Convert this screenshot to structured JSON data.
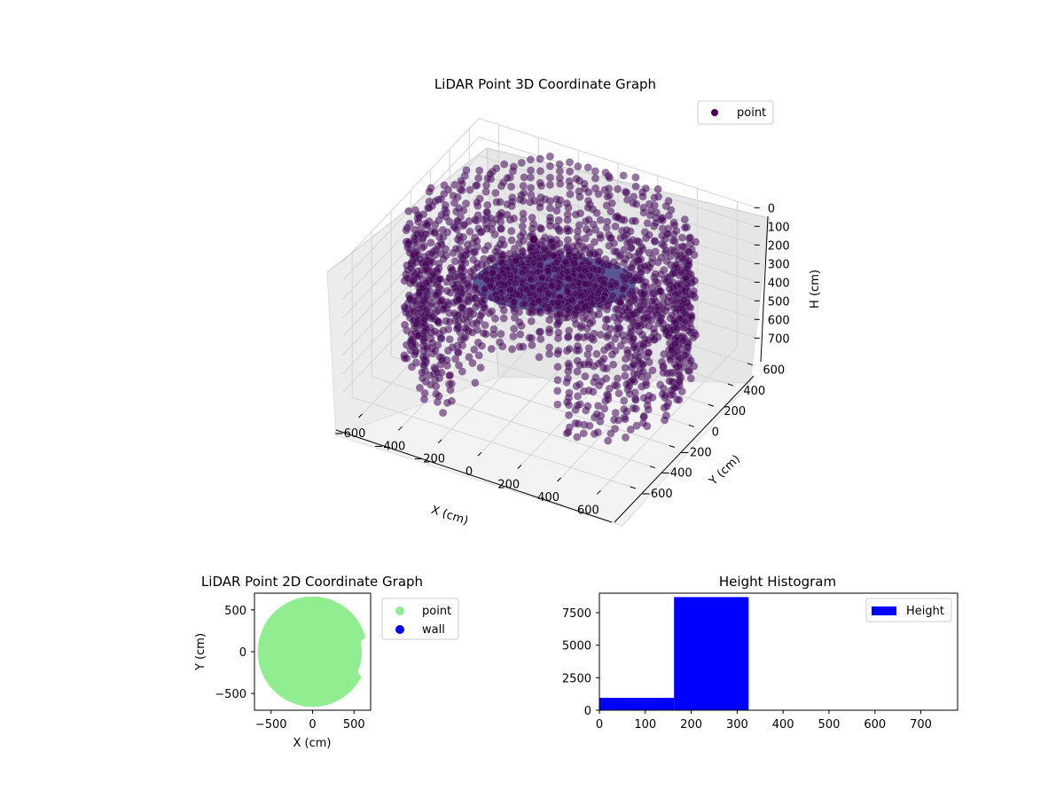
{
  "chart_data": [
    {
      "type": "scatter",
      "subtype": "3d",
      "title": "LiDAR Point 3D Coordinate Graph",
      "xlabel": "X (cm)",
      "ylabel": "Y (cm)",
      "zlabel": "H (cm)",
      "xlim": [
        -700,
        700
      ],
      "ylim": [
        -700,
        700
      ],
      "zlim": [
        0,
        780
      ],
      "z_inverted": true,
      "xticks": [
        -600,
        -400,
        -200,
        0,
        200,
        400,
        600
      ],
      "yticks": [
        -600,
        -400,
        -200,
        0,
        200,
        400,
        600
      ],
      "zticks": [
        0,
        100,
        200,
        300,
        400,
        500,
        600,
        700
      ],
      "grid": true,
      "legend": {
        "placement": "upper-right",
        "entries": [
          {
            "label": "point",
            "color": "#440154"
          }
        ]
      },
      "series": [
        {
          "name": "point",
          "color": "#440154",
          "outer_ring": {
            "radius_range": [
              560,
              660
            ],
            "height_range": [
              0,
              690
            ],
            "gap_deg": [
              250,
              300
            ]
          },
          "middle_ring": {
            "radius": 420,
            "height_range": [
              80,
              640
            ],
            "gap_deg": [
              250,
              300
            ]
          },
          "inner_disk": {
            "radius_range": [
              0,
              300
            ],
            "height": 230
          },
          "central_object": {
            "x": 120,
            "y": 40,
            "height_range": [
              130,
              450
            ]
          },
          "outlier": {
            "x": -120,
            "y": 80,
            "h": 110
          }
        }
      ]
    },
    {
      "type": "scatter",
      "title": "LiDAR Point 2D Coordinate Graph",
      "xlabel": "X (cm)",
      "ylabel": "Y (cm)",
      "xlim": [
        -700,
        700
      ],
      "ylim": [
        -700,
        700
      ],
      "xticks": [
        -500,
        0,
        500
      ],
      "yticks": [
        -500,
        0,
        500
      ],
      "legend": {
        "placement": "outside-right",
        "entries": [
          {
            "label": "point",
            "color": "#90ee90"
          },
          {
            "label": "wall",
            "color": "#0000ff"
          }
        ]
      },
      "series": [
        {
          "name": "point",
          "color": "#90ee90",
          "shape": "disk",
          "radius": 660
        },
        {
          "name": "wall",
          "color": "#0000ff",
          "values": []
        }
      ]
    },
    {
      "type": "bar",
      "subtype": "histogram",
      "title": "Height Histogram",
      "xlim": [
        0,
        780
      ],
      "ylim": [
        0,
        9000
      ],
      "xticks": [
        0,
        100,
        200,
        300,
        400,
        500,
        600,
        700
      ],
      "yticks": [
        0,
        2500,
        5000,
        7500
      ],
      "legend": {
        "placement": "upper-right",
        "entries": [
          {
            "label": "Height",
            "color": "#0000ff"
          }
        ]
      },
      "series": [
        {
          "name": "Height",
          "color": "#0000ff",
          "bins": [
            [
              0,
              162.5
            ],
            [
              162.5,
              325
            ],
            [
              325,
              487.5
            ],
            [
              487.5,
              650
            ],
            [
              650,
              780
            ]
          ],
          "values": [
            950,
            8700,
            25,
            15,
            5
          ]
        }
      ]
    }
  ]
}
